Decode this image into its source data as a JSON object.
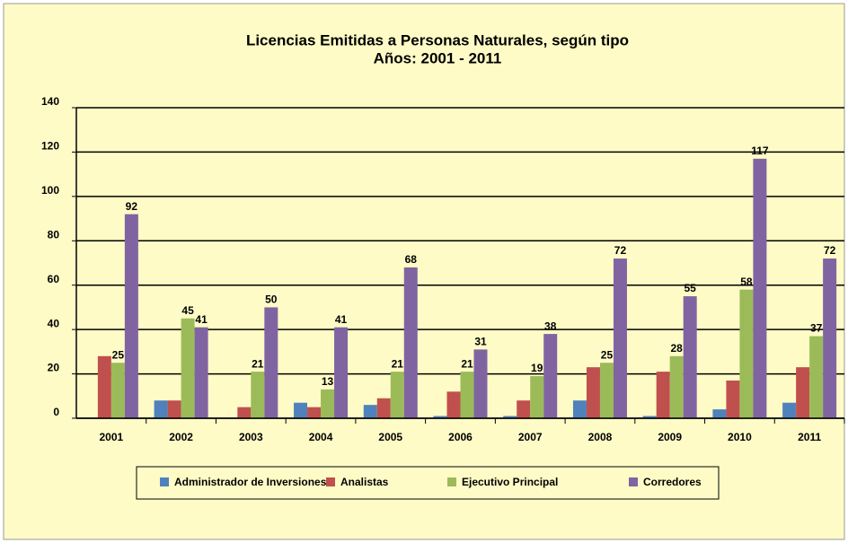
{
  "chart_data": {
    "type": "bar",
    "title": "Licencias Emitidas a Personas Naturales, según tipo",
    "subtitle": "Años: 2001 - 2011",
    "categories": [
      "2001",
      "2002",
      "2003",
      "2004",
      "2005",
      "2006",
      "2007",
      "2008",
      "2009",
      "2010",
      "2011"
    ],
    "series": [
      {
        "name": "Administrador de Inversiones",
        "color": "#4f81bd",
        "values": [
          0,
          8,
          0,
          7,
          6,
          1,
          1,
          8,
          1,
          4,
          7
        ],
        "show_labels": false
      },
      {
        "name": "Analistas",
        "color": "#c0504d",
        "values": [
          28,
          8,
          5,
          5,
          9,
          12,
          8,
          23,
          21,
          17,
          23
        ],
        "show_labels": false
      },
      {
        "name": "Ejecutivo Principal",
        "color": "#9bbb59",
        "values": [
          25,
          45,
          21,
          13,
          21,
          21,
          19,
          25,
          28,
          58,
          37
        ],
        "show_labels": true
      },
      {
        "name": "Corredores",
        "color": "#8064a2",
        "values": [
          92,
          41,
          50,
          41,
          68,
          31,
          38,
          72,
          55,
          117,
          72
        ],
        "show_labels": true
      }
    ],
    "ylim": [
      0,
      140
    ],
    "yticks": [
      0,
      20,
      40,
      60,
      80,
      100,
      120,
      140
    ],
    "grid": true,
    "legend": "bottom"
  }
}
